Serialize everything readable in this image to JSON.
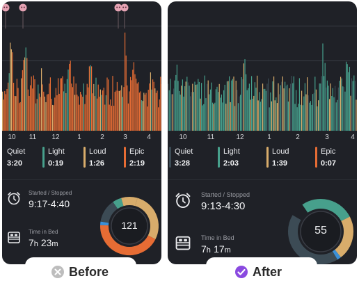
{
  "colors": {
    "quiet": "#3c4b55",
    "light": "#47a08c",
    "loud": "#d8ac6b",
    "epic": "#e66c34",
    "phone_bg": "#1f2127",
    "check_purple": "#8a4ae0",
    "x_gray": "#bdbdbd"
  },
  "before": {
    "caption": "Before",
    "caption_icon": "x-circle-icon",
    "time_ticks": [
      "10",
      "11",
      "12",
      "1",
      "2",
      "3",
      "4"
    ],
    "legend": [
      {
        "name": "Quiet",
        "time": "3:20",
        "color": "#3c4b55"
      },
      {
        "name": "Light",
        "time": "0:19",
        "color": "#47a08c"
      },
      {
        "name": "Loud",
        "time": "1:26",
        "color": "#d8ac6b"
      },
      {
        "name": "Epic",
        "time": "2:19",
        "color": "#e66c34"
      }
    ],
    "started_label": "Started / Stopped",
    "started_value": "9:17-4:40",
    "bed_label": "Time in Bed",
    "bed_hours": "7",
    "bed_h_unit": "h",
    "bed_minutes": "23",
    "bed_m_unit": "m",
    "score": "121",
    "score_segments": [
      0.05,
      0.09,
      0.28,
      0.43,
      0.02,
      0.13
    ],
    "chart_markers": [
      "ghost-marker-icon",
      "ghost-marker-icon",
      "ghost-marker-icon",
      "ghost-marker-icon"
    ]
  },
  "after": {
    "caption": "After",
    "caption_icon": "check-circle-icon",
    "time_ticks": [
      "10",
      "11",
      "12",
      "1",
      "2",
      "3",
      "4"
    ],
    "legend": [
      {
        "name": "Quiet",
        "time": "3:28",
        "color": "#3c4b55"
      },
      {
        "name": "Light",
        "time": "2:03",
        "color": "#47a08c"
      },
      {
        "name": "Loud",
        "time": "1:39",
        "color": "#d8ac6b"
      },
      {
        "name": "Epic",
        "time": "0:07",
        "color": "#e66c34"
      }
    ],
    "started_label": "Started / Stopped",
    "started_value": "9:13-4:30",
    "bed_label": "Time in Bed",
    "bed_hours": "7",
    "bed_h_unit": "h",
    "bed_minutes": "17",
    "bed_m_unit": "m",
    "score": "55",
    "score_segments": [
      0.27,
      0.22,
      0.02,
      0.42
    ]
  }
}
